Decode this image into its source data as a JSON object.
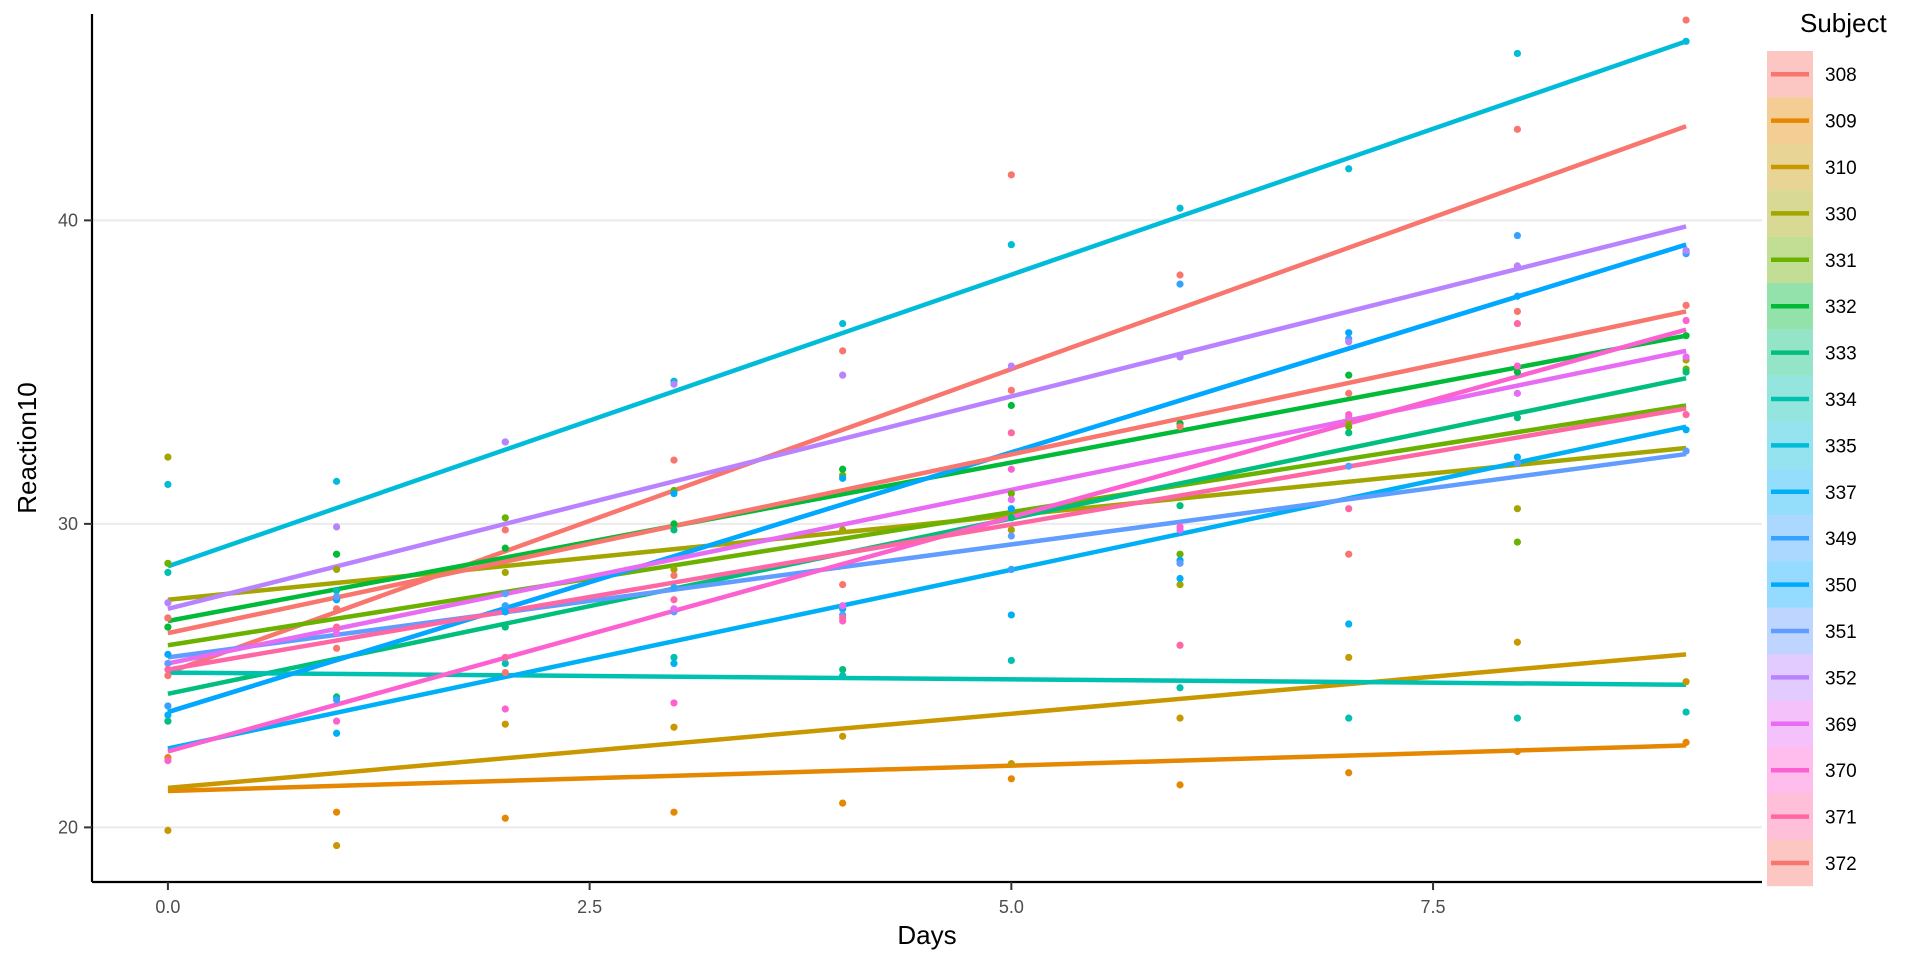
{
  "chart_data": {
    "type": "scatter",
    "xlabel": "Days",
    "ylabel": "Reaction10",
    "xlim": [
      -0.45,
      9.45
    ],
    "ylim": [
      18.2,
      46.8
    ],
    "x_ticks": [
      0,
      2.5,
      5,
      7.5
    ],
    "x_tick_labels": [
      "0.0",
      "2.5",
      "5.0",
      "7.5"
    ],
    "y_ticks": [
      20,
      30,
      40
    ],
    "y_tick_labels": [
      "20",
      "30",
      "40"
    ],
    "grid": "horizontal-major",
    "legend": {
      "title": "Subject",
      "position": "right"
    },
    "x": [
      0,
      1,
      2,
      3,
      4,
      5,
      6,
      7,
      8,
      9
    ],
    "series": [
      {
        "name": "308",
        "color": "#F8766D",
        "fit": [
          25.1,
          43.1
        ],
        "values": [
          25.0,
          25.9,
          25.1,
          32.1,
          35.7,
          41.5,
          38.2,
          29.0,
          43.0,
          46.6
        ]
      },
      {
        "name": "309",
        "color": "#E58700",
        "fit": [
          21.2,
          22.7
        ],
        "values": [
          22.3,
          20.5,
          20.3,
          20.5,
          20.8,
          21.6,
          21.4,
          21.8,
          22.5,
          22.8
        ]
      },
      {
        "name": "310",
        "color": "#C99800",
        "fit": [
          21.3,
          25.7
        ],
        "values": [
          19.9,
          19.4,
          23.4,
          23.3,
          23.0,
          22.1,
          23.6,
          25.6,
          26.1,
          24.8
        ]
      },
      {
        "name": "330",
        "color": "#A3A500",
        "fit": [
          27.5,
          32.5
        ],
        "values": [
          32.2,
          28.5,
          28.4,
          28.5,
          29.8,
          29.8,
          28.0,
          33.4,
          30.5,
          35.4
        ]
      },
      {
        "name": "331",
        "color": "#6BB100",
        "fit": [
          26.0,
          33.9
        ],
        "values": [
          28.7,
          27.5,
          30.2,
          31.1,
          31.6,
          31.0,
          29.0,
          33.2,
          29.4,
          35.1
        ]
      },
      {
        "name": "332",
        "color": "#00BA38",
        "fit": [
          26.8,
          36.2
        ],
        "values": [
          26.6,
          29.0,
          29.2,
          30.0,
          31.8,
          33.9,
          33.3,
          34.9,
          35.0,
          36.2
        ]
      },
      {
        "name": "333",
        "color": "#00BF7D",
        "fit": [
          24.4,
          34.8
        ],
        "values": [
          23.5,
          24.3,
          26.6,
          29.8,
          25.2,
          30.2,
          30.6,
          33.0,
          33.5,
          35.0
        ]
      },
      {
        "name": "334",
        "color": "#00C0AF",
        "fit": [
          25.1,
          24.7
        ],
        "values": [
          28.4,
          27.8,
          25.4,
          25.6,
          25.0,
          25.5,
          24.6,
          23.6,
          23.6,
          23.8
        ]
      },
      {
        "name": "335",
        "color": "#00BCD8",
        "fit": [
          28.6,
          45.9
        ],
        "values": [
          31.3,
          31.4,
          32.7,
          34.7,
          36.6,
          39.2,
          40.4,
          41.7,
          45.5,
          45.9
        ]
      },
      {
        "name": "337",
        "color": "#00B0F6",
        "fit": [
          22.6,
          33.2
        ],
        "values": [
          23.7,
          23.1,
          27.3,
          25.4,
          27.2,
          27.0,
          28.2,
          26.7,
          32.2,
          33.1
        ]
      },
      {
        "name": "349",
        "color": "#35A2FF",
        "fit": [
          23.8,
          39.2
        ],
        "values": [
          24.0,
          24.2,
          27.3,
          27.9,
          27.3,
          28.5,
          37.9,
          36.1,
          39.5,
          38.9
        ]
      },
      {
        "name": "350",
        "color": "#00A9FF",
        "fit": [
          23.8,
          39.2
        ],
        "values": [
          25.7,
          27.5,
          27.1,
          31.0,
          31.5,
          30.5,
          28.8,
          36.3,
          37.5,
          39.0
        ]
      },
      {
        "name": "351",
        "color": "#619CFF",
        "fit": [
          25.6,
          32.3
        ],
        "values": [
          25.4,
          27.6,
          27.7,
          27.1,
          27.0,
          29.6,
          28.7,
          31.9,
          32.0,
          32.4
        ]
      },
      {
        "name": "352",
        "color": "#B983FF",
        "fit": [
          27.2,
          39.8
        ],
        "values": [
          27.4,
          29.9,
          32.7,
          34.6,
          34.9,
          35.2,
          35.5,
          36.0,
          38.5,
          39.0
        ]
      },
      {
        "name": "369",
        "color": "#E76BF3",
        "fit": [
          25.4,
          35.7
        ],
        "values": [
          26.9,
          26.4,
          25.6,
          27.2,
          27.3,
          30.8,
          29.8,
          33.5,
          34.3,
          35.5
        ]
      },
      {
        "name": "370",
        "color": "#FD61D1",
        "fit": [
          22.5,
          36.4
        ],
        "values": [
          22.2,
          23.5,
          23.9,
          24.1,
          26.8,
          31.8,
          29.9,
          33.6,
          35.2,
          36.7
        ]
      },
      {
        "name": "371",
        "color": "#FF67A4",
        "fit": [
          25.2,
          33.8
        ],
        "values": [
          25.2,
          26.6,
          25.6,
          27.5,
          26.9,
          33.0,
          26.0,
          30.5,
          36.6,
          33.6
        ]
      },
      {
        "name": "372",
        "color": "#F8766D",
        "fit": [
          26.4,
          37.0
        ],
        "values": [
          26.9,
          27.2,
          29.8,
          28.3,
          28.0,
          34.4,
          33.2,
          34.3,
          37.0,
          37.2
        ]
      }
    ]
  }
}
